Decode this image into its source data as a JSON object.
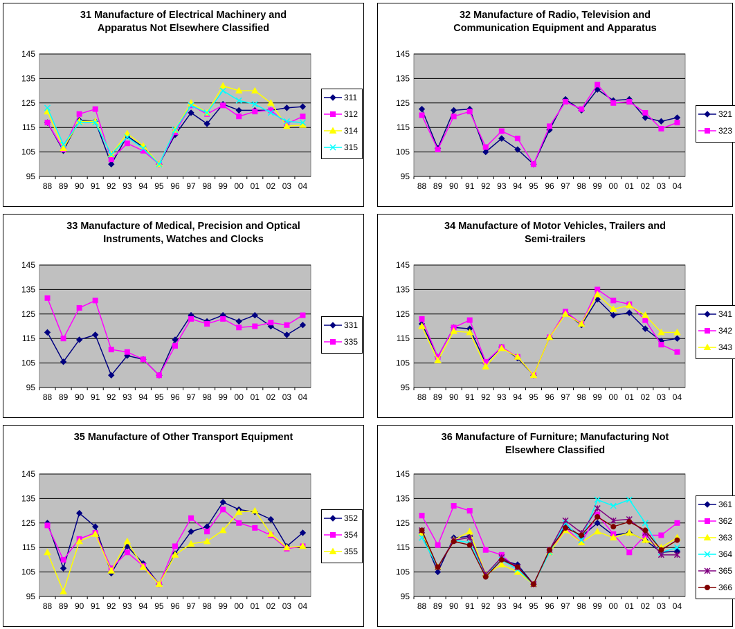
{
  "chart_data": [
    {
      "type": "line",
      "title": "31 Manufacture of Electrical Machinery and\nApparatus Not Elsewhere Classified",
      "categories": [
        "88",
        "89",
        "90",
        "91",
        "92",
        "93",
        "94",
        "95",
        "96",
        "97",
        "98",
        "99",
        "00",
        "01",
        "02",
        "03",
        "04"
      ],
      "ylim": [
        95,
        145
      ],
      "yticks": [
        "95",
        "105",
        "115",
        "125",
        "135",
        "145"
      ],
      "grid": true,
      "legend": "right",
      "series": [
        {
          "name": "311",
          "color": "#000080",
          "marker": "diamond",
          "values": [
            117,
            105.5,
            118,
            117.5,
            100,
            111.5,
            107,
            100,
            112,
            121,
            116.5,
            124.5,
            122,
            122,
            122,
            123,
            123.5
          ]
        },
        {
          "name": "312",
          "color": "#ff00ff",
          "marker": "square",
          "values": [
            117,
            106,
            120.5,
            122.5,
            102,
            108.5,
            105.5,
            100,
            113,
            124,
            120.5,
            124,
            119.5,
            121.5,
            122,
            116.5,
            119.5
          ]
        },
        {
          "name": "314",
          "color": "#ffff00",
          "marker": "triangle",
          "values": [
            121.5,
            106.5,
            117.5,
            117.5,
            104,
            112.5,
            107.5,
            100,
            114,
            125,
            121,
            132,
            130,
            130,
            125,
            115.5,
            116
          ]
        },
        {
          "name": "315",
          "color": "#00ffff",
          "marker": "x",
          "values": [
            123,
            108,
            117,
            117,
            104,
            111,
            106.5,
            100,
            114,
            124,
            121,
            130,
            126,
            124.5,
            121,
            117.5,
            117
          ]
        }
      ]
    },
    {
      "type": "line",
      "title": "32 Manufacture of Radio, Television and\nCommunication Equipment and Apparatus",
      "categories": [
        "88",
        "89",
        "90",
        "91",
        "92",
        "93",
        "94",
        "95",
        "96",
        "97",
        "98",
        "99",
        "00",
        "01",
        "02",
        "03",
        "04"
      ],
      "ylim": [
        95,
        145
      ],
      "yticks": [
        "95",
        "105",
        "115",
        "125",
        "135",
        "145"
      ],
      "grid": true,
      "legend": "right",
      "series": [
        {
          "name": "321",
          "color": "#000080",
          "marker": "diamond",
          "values": [
            122.5,
            106.5,
            122,
            122.5,
            105,
            110.5,
            106,
            100,
            114,
            126.5,
            122,
            130.5,
            126,
            126.5,
            119,
            117.5,
            119
          ]
        },
        {
          "name": "323",
          "color": "#ff00ff",
          "marker": "square",
          "values": [
            120,
            106,
            119.5,
            121.5,
            107,
            113.5,
            110.5,
            100,
            115.5,
            125.5,
            122.5,
            132.5,
            125,
            125.5,
            121,
            114.5,
            117
          ]
        }
      ]
    },
    {
      "type": "line",
      "title": "33 Manufacture of Medical, Precision and Optical\nInstruments, Watches and Clocks",
      "categories": [
        "88",
        "89",
        "90",
        "91",
        "92",
        "93",
        "94",
        "95",
        "96",
        "97",
        "98",
        "99",
        "00",
        "01",
        "02",
        "03",
        "04"
      ],
      "ylim": [
        95,
        145
      ],
      "yticks": [
        "95",
        "105",
        "115",
        "125",
        "135",
        "145"
      ],
      "grid": true,
      "legend": "right",
      "series": [
        {
          "name": "331",
          "color": "#000080",
          "marker": "diamond",
          "values": [
            117.5,
            105.5,
            114.5,
            116.5,
            100,
            108,
            106.5,
            100,
            114.5,
            124.5,
            122,
            124.5,
            122,
            124.5,
            120,
            116.5,
            120.5
          ]
        },
        {
          "name": "335",
          "color": "#ff00ff",
          "marker": "square",
          "values": [
            131.5,
            115,
            127.5,
            130.5,
            110.5,
            109.5,
            106.5,
            100,
            112,
            123,
            121,
            123,
            119.5,
            120,
            121.5,
            120.5,
            124.5
          ]
        }
      ]
    },
    {
      "type": "line",
      "title": "34 Manufacture of Motor Vehicles, Trailers and\nSemi-trailers",
      "categories": [
        "88",
        "89",
        "90",
        "91",
        "92",
        "93",
        "94",
        "95",
        "96",
        "97",
        "98",
        "99",
        "00",
        "01",
        "02",
        "03",
        "04"
      ],
      "ylim": [
        95,
        145
      ],
      "yticks": [
        "95",
        "105",
        "115",
        "125",
        "135",
        "145"
      ],
      "grid": true,
      "legend": "right",
      "series": [
        {
          "name": "341",
          "color": "#000080",
          "marker": "diamond",
          "values": [
            121,
            107.5,
            119.5,
            119,
            105,
            111.5,
            107,
            100,
            115.5,
            125.5,
            120.5,
            131,
            124.5,
            125.5,
            119,
            114,
            115
          ]
        },
        {
          "name": "342",
          "color": "#ff00ff",
          "marker": "square",
          "values": [
            123,
            107.5,
            119.5,
            122.5,
            105.5,
            111.5,
            107.5,
            100,
            115.5,
            126,
            121,
            135,
            130.5,
            129,
            122.5,
            112.5,
            109.5
          ]
        },
        {
          "name": "343",
          "color": "#ffff00",
          "marker": "triangle",
          "values": [
            120,
            106,
            118,
            117.5,
            103.5,
            111,
            107.5,
            100,
            115.5,
            125,
            121,
            133,
            127,
            128.5,
            124.5,
            117.5,
            117.5
          ]
        }
      ]
    },
    {
      "type": "line",
      "title": "35 Manufacture of Other Transport Equipment",
      "categories": [
        "88",
        "89",
        "90",
        "91",
        "92",
        "93",
        "94",
        "95",
        "96",
        "97",
        "98",
        "99",
        "00",
        "01",
        "02",
        "03",
        "04"
      ],
      "ylim": [
        95,
        145
      ],
      "yticks": [
        "95",
        "105",
        "115",
        "125",
        "135",
        "145"
      ],
      "grid": true,
      "legend": "right",
      "series": [
        {
          "name": "352",
          "color": "#000080",
          "marker": "diamond",
          "values": [
            125,
            106.5,
            129,
            123.5,
            104.5,
            115.5,
            108.5,
            100,
            112.5,
            121.5,
            123.5,
            133.5,
            130.5,
            129.5,
            126.5,
            115.5,
            121
          ]
        },
        {
          "name": "354",
          "color": "#ff00ff",
          "marker": "square",
          "values": [
            124,
            110,
            118.5,
            121,
            106.5,
            113,
            107.5,
            100,
            115.5,
            127,
            121.5,
            130.5,
            125,
            123,
            120,
            114.5,
            115.5
          ]
        },
        {
          "name": "355",
          "color": "#ffff00",
          "marker": "triangle",
          "values": [
            113,
            97,
            117.5,
            120.5,
            105.5,
            117.5,
            107,
            100,
            112,
            116.5,
            117.5,
            122,
            129.5,
            130,
            120.5,
            115,
            115.5
          ]
        }
      ]
    },
    {
      "type": "line",
      "title": "36 Manufacture of Furniture; Manufacturing Not\nElsewhere Classified",
      "categories": [
        "88",
        "89",
        "90",
        "91",
        "92",
        "93",
        "94",
        "95",
        "96",
        "97",
        "98",
        "99",
        "00",
        "01",
        "02",
        "03",
        "04"
      ],
      "ylim": [
        95,
        145
      ],
      "yticks": [
        "95",
        "105",
        "115",
        "125",
        "135",
        "145"
      ],
      "grid": true,
      "legend": "right",
      "series": [
        {
          "name": "361",
          "color": "#000080",
          "marker": "diamond",
          "values": [
            121,
            105,
            119,
            119.5,
            103.5,
            110,
            108,
            100,
            114,
            124,
            119.5,
            125,
            120,
            121,
            118,
            113,
            113.5
          ]
        },
        {
          "name": "362",
          "color": "#ff00ff",
          "marker": "square",
          "values": [
            128,
            116,
            132,
            130,
            114,
            112,
            106,
            100,
            113,
            123,
            117,
            128.5,
            120.5,
            113,
            120,
            120,
            125
          ]
        },
        {
          "name": "363",
          "color": "#ffff00",
          "marker": "triangle",
          "values": [
            121,
            107,
            118,
            121.5,
            104,
            108,
            105,
            100,
            113,
            122,
            117,
            121.5,
            119,
            121,
            118,
            115,
            119
          ]
        },
        {
          "name": "364",
          "color": "#00ffff",
          "marker": "x",
          "values": [
            119,
            107,
            118,
            117,
            104,
            110,
            106,
            100,
            113,
            125,
            118,
            134.5,
            132,
            134.5,
            125,
            113,
            115
          ]
        },
        {
          "name": "365",
          "color": "#800080",
          "marker": "asterisk",
          "values": [
            122,
            107,
            118,
            119,
            104,
            111,
            107,
            100,
            114,
            126,
            121,
            131,
            126,
            126.5,
            121,
            112,
            112
          ]
        },
        {
          "name": "366",
          "color": "#800000",
          "marker": "circle",
          "values": [
            122,
            107,
            117.5,
            116,
            103,
            110,
            107,
            100,
            114,
            123,
            120,
            127.5,
            123.5,
            125.5,
            122,
            114,
            118
          ]
        }
      ]
    }
  ]
}
